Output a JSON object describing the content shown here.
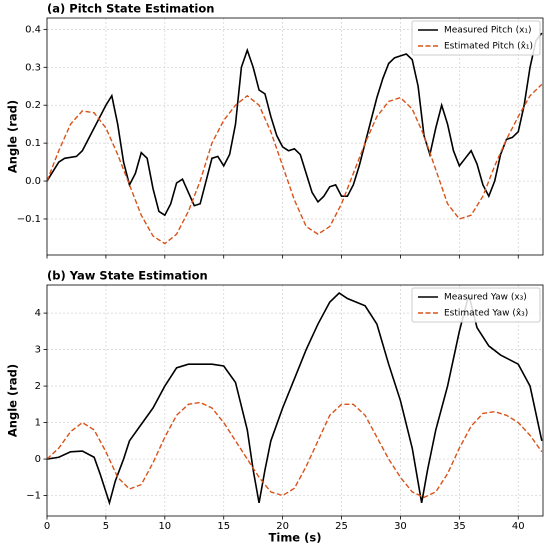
{
  "chart_data": [
    {
      "type": "line",
      "title": "(a) Pitch State Estimation",
      "ylabel": "Angle (rad)",
      "xlim": [
        0,
        42.1
      ],
      "ylim": [
        -0.195,
        0.43
      ],
      "grid": true,
      "legend": "upper right",
      "xticks": [
        0,
        5,
        10,
        15,
        20,
        25,
        30,
        35,
        40
      ],
      "yticks": [
        {
          "value": -0.1,
          "label": "−0.1"
        },
        {
          "value": 0,
          "label": "0.0"
        },
        0.1,
        0.2,
        0.3,
        0.4
      ],
      "series": [
        {
          "name": "Measured Pitch (x₁)",
          "color": "#000000",
          "style": "solid",
          "x": [
            0,
            1,
            1.5,
            2.5,
            3,
            4,
            5,
            5.5,
            6,
            6.5,
            7,
            7.5,
            8,
            8.5,
            9,
            9.5,
            10,
            10.5,
            11,
            11.5,
            12,
            12.5,
            13,
            13.5,
            14,
            14.5,
            15,
            15.5,
            16,
            16.5,
            17,
            17.5,
            18,
            18.5,
            19,
            19.5,
            20,
            20.5,
            21,
            21.5,
            22,
            22.5,
            23,
            23.5,
            24,
            24.5,
            25,
            25.5,
            26,
            26.5,
            27,
            27.5,
            28,
            28.5,
            29,
            29.5,
            30,
            30.5,
            31,
            31.5,
            32,
            32.5,
            33,
            33.5,
            34,
            34.5,
            35,
            35.5,
            36,
            36.5,
            37,
            37.5,
            38,
            38.5,
            39,
            39.5,
            40,
            40.5,
            41,
            41.5,
            42
          ],
          "values": [
            0,
            0.05,
            0.06,
            0.065,
            0.08,
            0.14,
            0.2,
            0.225,
            0.15,
            0.05,
            -0.01,
            0.02,
            0.075,
            0.06,
            -0.02,
            -0.08,
            -0.09,
            -0.06,
            -0.005,
            0.005,
            -0.03,
            -0.065,
            -0.06,
            0.0,
            0.06,
            0.065,
            0.04,
            0.07,
            0.15,
            0.3,
            0.345,
            0.3,
            0.24,
            0.23,
            0.17,
            0.12,
            0.09,
            0.08,
            0.085,
            0.07,
            0.02,
            -0.03,
            -0.055,
            -0.04,
            -0.015,
            -0.01,
            -0.04,
            -0.04,
            -0.01,
            0.04,
            0.1,
            0.16,
            0.22,
            0.27,
            0.31,
            0.325,
            0.33,
            0.335,
            0.32,
            0.25,
            0.12,
            0.07,
            0.14,
            0.2,
            0.15,
            0.08,
            0.04,
            0.06,
            0.08,
            0.045,
            -0.01,
            -0.04,
            0.0,
            0.07,
            0.11,
            0.115,
            0.13,
            0.2,
            0.3,
            0.37,
            0.39
          ]
        },
        {
          "name": "Estimated Pitch (x̂₁)",
          "color": "#d95319",
          "style": "dashed",
          "x": [
            0,
            1,
            2,
            3,
            4,
            5,
            6,
            7,
            8,
            9,
            10,
            11,
            12,
            13,
            14,
            15,
            16,
            17,
            18,
            19,
            20,
            21,
            22,
            23,
            24,
            25,
            26,
            27,
            28,
            29,
            30,
            31,
            32,
            33,
            34,
            35,
            36,
            37,
            38,
            39,
            40,
            41,
            42
          ],
          "values": [
            0,
            0.08,
            0.15,
            0.185,
            0.18,
            0.14,
            0.07,
            -0.01,
            -0.09,
            -0.145,
            -0.165,
            -0.14,
            -0.08,
            0.0,
            0.1,
            0.16,
            0.2,
            0.225,
            0.2,
            0.13,
            0.04,
            -0.05,
            -0.12,
            -0.14,
            -0.12,
            -0.06,
            0.02,
            0.1,
            0.17,
            0.21,
            0.22,
            0.19,
            0.12,
            0.03,
            -0.06,
            -0.1,
            -0.09,
            -0.04,
            0.04,
            0.11,
            0.17,
            0.225,
            0.255
          ]
        }
      ]
    },
    {
      "type": "line",
      "title": "(b) Yaw State Estimation",
      "ylabel": "Angle (rad)",
      "xlabel": "Time (s)",
      "xlim": [
        0,
        42.1
      ],
      "ylim": [
        -1.56,
        4.77
      ],
      "grid": true,
      "legend": "upper right",
      "xticks": [
        0,
        5,
        10,
        15,
        20,
        25,
        30,
        35,
        40
      ],
      "yticks": [
        {
          "value": -1,
          "label": "−1"
        },
        0,
        1,
        2,
        3,
        4
      ],
      "series": [
        {
          "name": "Measured Yaw (x₃)",
          "color": "#000000",
          "style": "solid",
          "x": [
            0,
            1,
            2,
            3,
            4,
            4.5,
            5,
            5.3,
            5.8,
            6.5,
            7,
            8,
            9,
            10,
            11,
            12,
            13,
            14,
            15,
            16,
            17,
            17.5,
            18,
            18.5,
            19,
            20,
            21,
            22,
            23,
            24,
            24.8,
            25.5,
            27,
            28,
            29,
            30,
            31,
            31.8,
            32.3,
            33,
            34,
            35,
            35.8,
            36.5,
            37.5,
            38.5,
            40,
            41,
            42
          ],
          "values": [
            0,
            0.05,
            0.2,
            0.22,
            0.05,
            -0.4,
            -0.9,
            -1.2,
            -0.6,
            0,
            0.5,
            0.95,
            1.4,
            2.0,
            2.5,
            2.6,
            2.6,
            2.6,
            2.55,
            2.1,
            0.8,
            -0.3,
            -1.2,
            -0.3,
            0.5,
            1.4,
            2.2,
            3.0,
            3.7,
            4.3,
            4.55,
            4.4,
            4.2,
            3.7,
            2.6,
            1.6,
            0.3,
            -1.2,
            -0.3,
            0.8,
            2.0,
            3.5,
            4.5,
            3.6,
            3.1,
            2.85,
            2.6,
            2.0,
            0.5
          ]
        },
        {
          "name": "Estimated Yaw (x̂₃)",
          "color": "#d95319",
          "style": "dashed",
          "x": [
            0,
            1,
            2,
            3,
            4,
            5,
            6,
            7,
            8,
            9,
            10,
            11,
            12,
            13,
            14,
            15,
            16,
            17,
            18,
            19,
            20,
            21,
            22,
            23,
            24,
            25,
            26,
            27,
            28,
            29,
            30,
            31,
            32,
            33,
            34,
            35,
            36,
            37,
            38,
            39,
            40,
            41,
            42
          ],
          "values": [
            0,
            0.3,
            0.75,
            1.0,
            0.8,
            0.2,
            -0.5,
            -0.82,
            -0.7,
            -0.1,
            0.6,
            1.2,
            1.5,
            1.55,
            1.4,
            1.0,
            0.5,
            0.0,
            -0.5,
            -0.9,
            -1.0,
            -0.8,
            -0.2,
            0.5,
            1.2,
            1.5,
            1.5,
            1.2,
            0.6,
            0.0,
            -0.5,
            -0.9,
            -1.05,
            -0.9,
            -0.4,
            0.3,
            0.9,
            1.25,
            1.3,
            1.2,
            1.0,
            0.65,
            0.2
          ]
        }
      ]
    }
  ]
}
